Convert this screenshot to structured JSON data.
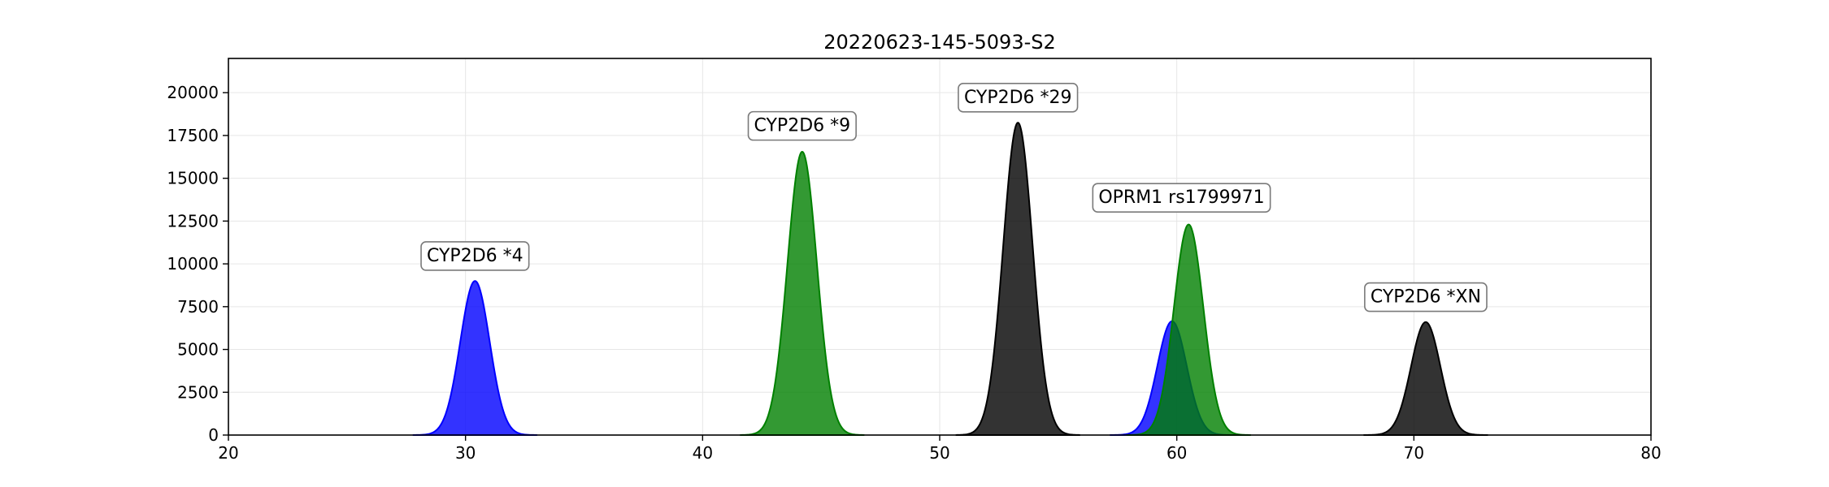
{
  "chart_data": {
    "type": "area",
    "title": "20220623-145-5093-S2",
    "xlim": [
      20,
      80
    ],
    "ylim": [
      0,
      22000
    ],
    "xticks": [
      20,
      30,
      40,
      50,
      60,
      70,
      80
    ],
    "yticks": [
      0,
      2500,
      5000,
      7500,
      10000,
      12500,
      15000,
      17500,
      20000
    ],
    "grid": true,
    "colors": {
      "blue": "#0000ff",
      "green": "#008000",
      "black": "#000000"
    },
    "series": [
      {
        "color": "blue",
        "peaks": [
          {
            "x": 30.4,
            "y": 9000,
            "width": 0.62
          },
          {
            "x": 59.8,
            "y": 6650,
            "width": 0.62
          }
        ]
      },
      {
        "color": "green",
        "peaks": [
          {
            "x": 44.2,
            "y": 16550,
            "width": 0.62
          },
          {
            "x": 60.5,
            "y": 12300,
            "width": 0.62
          }
        ]
      },
      {
        "color": "black",
        "peaks": [
          {
            "x": 53.3,
            "y": 18250,
            "width": 0.62
          },
          {
            "x": 70.5,
            "y": 6600,
            "width": 0.62
          }
        ]
      }
    ],
    "annotations": [
      {
        "text": "CYP2D6 *4",
        "x": 30.4,
        "y": 10150
      },
      {
        "text": "CYP2D6 *9",
        "x": 44.2,
        "y": 17750
      },
      {
        "text": "CYP2D6 *29",
        "x": 53.3,
        "y": 19400
      },
      {
        "text": "OPRM1 rs1799971",
        "x": 60.2,
        "y": 13550
      },
      {
        "text": "CYP2D6 *XN",
        "x": 70.5,
        "y": 7750
      }
    ]
  }
}
